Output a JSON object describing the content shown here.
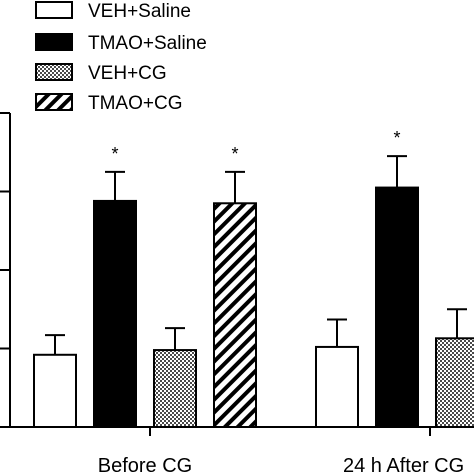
{
  "chart_data": {
    "type": "bar",
    "title": "",
    "xlabel": "",
    "ylabel": "",
    "categories": [
      "Before CG",
      "24 h After CG"
    ],
    "ylim": [
      0,
      4
    ],
    "y_ticks": [
      0,
      1,
      2,
      3,
      4
    ],
    "grid": false,
    "legend_position": "top-left",
    "series": [
      {
        "name": "VEH+Saline",
        "fill": "white",
        "values": [
          0.92,
          1.02
        ],
        "errors": [
          0.25,
          0.35
        ],
        "significant": [
          false,
          false
        ]
      },
      {
        "name": "TMAO+Saline",
        "fill": "black",
        "values": [
          2.88,
          3.05
        ],
        "errors": [
          0.37,
          0.4
        ],
        "significant": [
          true,
          true
        ]
      },
      {
        "name": "VEH+CG",
        "fill": "checkered",
        "values": [
          0.98,
          1.13
        ],
        "errors": [
          0.28,
          0.37
        ],
        "significant": [
          false,
          false
        ]
      },
      {
        "name": "TMAO+CG",
        "fill": "hatched",
        "values": [
          2.85,
          null
        ],
        "errors": [
          0.4,
          null
        ],
        "significant": [
          true,
          false
        ]
      }
    ],
    "significance_marker": "*"
  }
}
